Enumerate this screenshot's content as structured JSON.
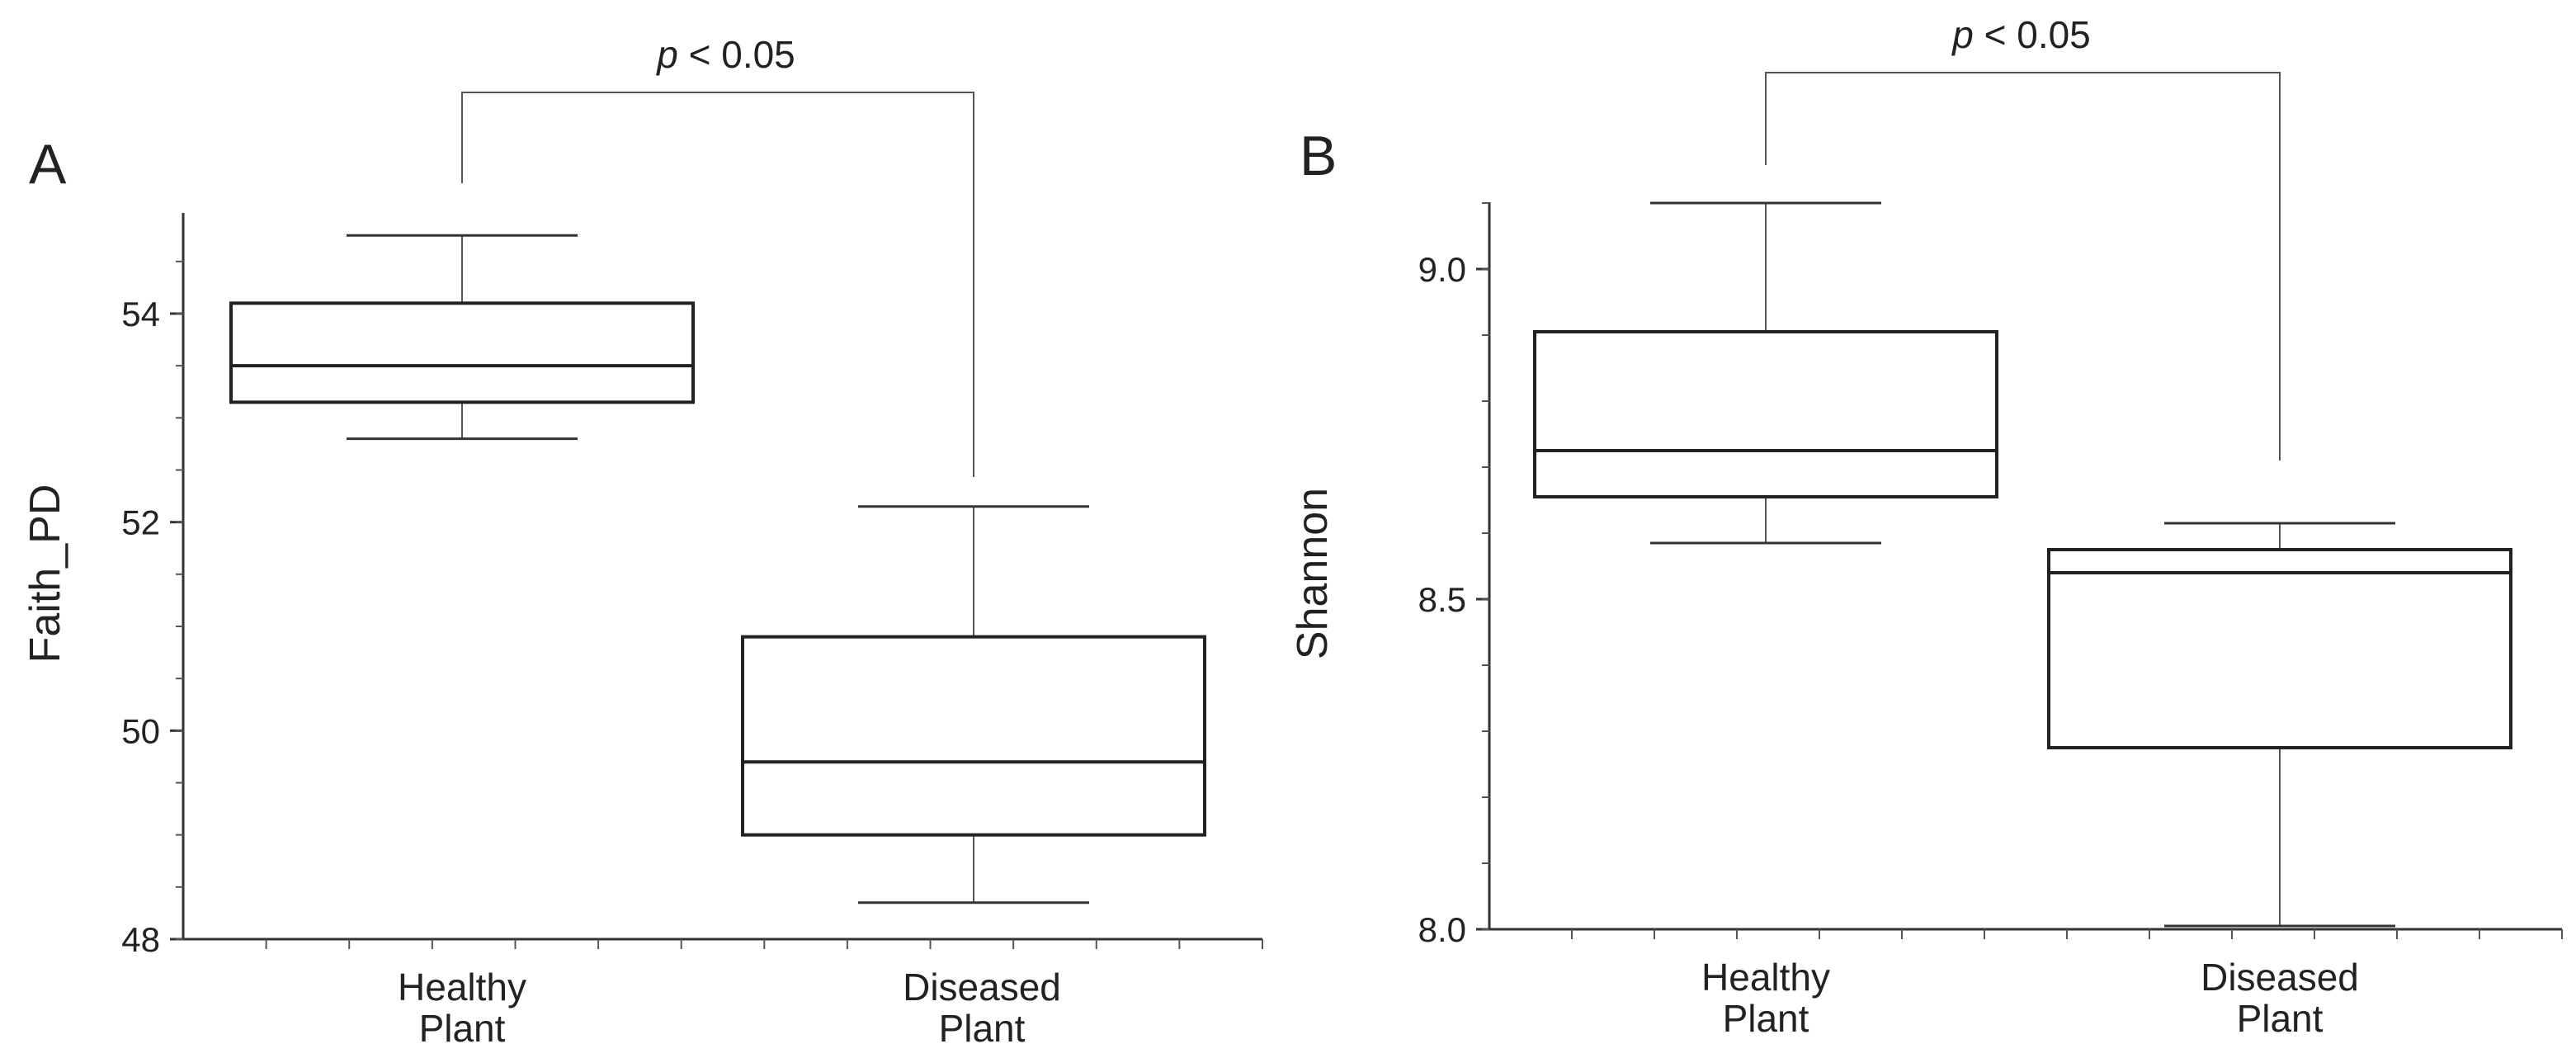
{
  "chart_data": [
    {
      "panel": "A",
      "type": "box",
      "ylabel": "Faith_PD",
      "xlabel": "",
      "ylim": [
        48,
        55
      ],
      "yticks": [
        48,
        50,
        52,
        54
      ],
      "categories": [
        "Healthy\nPlant",
        "Diseased\nPlant"
      ],
      "boxes": [
        {
          "name": "Healthy Plant",
          "whisker_low": 52.8,
          "q1": 53.15,
          "median": 53.5,
          "q3": 54.1,
          "whisker_high": 54.75
        },
        {
          "name": "Diseased Plant",
          "whisker_low": 48.35,
          "q1": 49.0,
          "median": 49.7,
          "q3": 50.9,
          "whisker_high": 52.15
        }
      ],
      "significance": {
        "italic": "p",
        "text": " < 0.05",
        "between": [
          0,
          1
        ]
      }
    },
    {
      "panel": "B",
      "type": "box",
      "ylabel": "Shannon",
      "xlabel": "",
      "ylim": [
        8.0,
        9.1
      ],
      "yticks": [
        8.0,
        8.5,
        9.0
      ],
      "categories": [
        "Healthy\nPlant",
        "Diseased\nPlant"
      ],
      "boxes": [
        {
          "name": "Healthy Plant",
          "whisker_low": 8.585,
          "q1": 8.655,
          "median": 8.725,
          "q3": 8.905,
          "whisker_high": 9.1
        },
        {
          "name": "Diseased Plant",
          "whisker_low": 8.005,
          "q1": 8.275,
          "median": 8.54,
          "q3": 8.575,
          "whisker_high": 8.615
        }
      ],
      "significance": {
        "italic": "p",
        "text": " < 0.05",
        "between": [
          0,
          1
        ]
      }
    }
  ]
}
